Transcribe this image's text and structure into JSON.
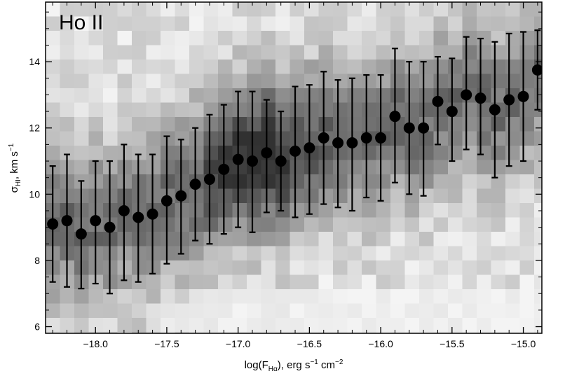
{
  "chart_data": {
    "type": "scatter",
    "title": "Ho II",
    "xlabel": {
      "prefix": "log(F",
      "sub": "Hα",
      "mid": "), erg s",
      "sup1": "−1",
      "mid2": " cm",
      "sup2": "−2"
    },
    "ylabel": {
      "sigma": "σ",
      "sub": "HI",
      "mid": ", km s",
      "sup": "−1"
    },
    "xlim": [
      -18.35,
      -14.87
    ],
    "ylim": [
      5.8,
      15.8
    ],
    "xticks": [
      -18.0,
      -17.5,
      -17.0,
      -16.5,
      -16.0,
      -15.5,
      -15.0
    ],
    "xtick_labels": [
      "−18.0",
      "−17.5",
      "−17.0",
      "−16.5",
      "−16.0",
      "−15.5",
      "−15.0"
    ],
    "yticks": [
      6,
      8,
      10,
      12,
      14
    ],
    "ytick_labels": [
      "6",
      "8",
      "10",
      "12",
      "14"
    ],
    "grid": false,
    "background": "2D density histogram (grayscale)",
    "series": [
      {
        "marker": "filled-circle",
        "color": "#000000",
        "points": [
          {
            "x": -18.3,
            "y": 9.1,
            "ylo": 7.35,
            "yhi": 10.85
          },
          {
            "x": -18.2,
            "y": 9.2,
            "ylo": 7.2,
            "yhi": 11.2
          },
          {
            "x": -18.1,
            "y": 8.8,
            "ylo": 7.15,
            "yhi": 10.4
          },
          {
            "x": -18.0,
            "y": 9.2,
            "ylo": 7.3,
            "yhi": 11.0
          },
          {
            "x": -17.9,
            "y": 9.0,
            "ylo": 7.0,
            "yhi": 11.0
          },
          {
            "x": -17.8,
            "y": 9.5,
            "ylo": 7.4,
            "yhi": 11.5
          },
          {
            "x": -17.7,
            "y": 9.3,
            "ylo": 7.35,
            "yhi": 11.2
          },
          {
            "x": -17.6,
            "y": 9.4,
            "ylo": 7.6,
            "yhi": 11.2
          },
          {
            "x": -17.5,
            "y": 9.8,
            "ylo": 7.9,
            "yhi": 11.75
          },
          {
            "x": -17.4,
            "y": 9.95,
            "ylo": 8.2,
            "yhi": 11.65
          },
          {
            "x": -17.3,
            "y": 10.3,
            "ylo": 8.6,
            "yhi": 12.0
          },
          {
            "x": -17.2,
            "y": 10.45,
            "ylo": 8.5,
            "yhi": 12.4
          },
          {
            "x": -17.1,
            "y": 10.75,
            "ylo": 8.8,
            "yhi": 12.7
          },
          {
            "x": -17.0,
            "y": 11.05,
            "ylo": 9.0,
            "yhi": 13.1
          },
          {
            "x": -16.9,
            "y": 11.0,
            "ylo": 8.85,
            "yhi": 13.1
          },
          {
            "x": -16.8,
            "y": 11.25,
            "ylo": 9.45,
            "yhi": 12.85
          },
          {
            "x": -16.7,
            "y": 11.0,
            "ylo": 9.5,
            "yhi": 12.5
          },
          {
            "x": -16.6,
            "y": 11.3,
            "ylo": 9.3,
            "yhi": 13.25
          },
          {
            "x": -16.5,
            "y": 11.4,
            "ylo": 9.4,
            "yhi": 13.3
          },
          {
            "x": -16.4,
            "y": 11.7,
            "ylo": 9.7,
            "yhi": 13.7
          },
          {
            "x": -16.3,
            "y": 11.55,
            "ylo": 9.6,
            "yhi": 13.45
          },
          {
            "x": -16.2,
            "y": 11.55,
            "ylo": 9.5,
            "yhi": 13.5
          },
          {
            "x": -16.1,
            "y": 11.7,
            "ylo": 9.9,
            "yhi": 13.6
          },
          {
            "x": -16.0,
            "y": 11.7,
            "ylo": 9.8,
            "yhi": 13.6
          },
          {
            "x": -15.9,
            "y": 12.35,
            "ylo": 10.35,
            "yhi": 14.4
          },
          {
            "x": -15.8,
            "y": 12.0,
            "ylo": 10.0,
            "yhi": 14.0
          },
          {
            "x": -15.7,
            "y": 12.0,
            "ylo": 9.95,
            "yhi": 14.0
          },
          {
            "x": -15.6,
            "y": 12.8,
            "ylo": 11.5,
            "yhi": 14.15
          },
          {
            "x": -15.5,
            "y": 12.5,
            "ylo": 11.0,
            "yhi": 14.1
          },
          {
            "x": -15.4,
            "y": 13.0,
            "ylo": 11.35,
            "yhi": 14.75
          },
          {
            "x": -15.3,
            "y": 12.9,
            "ylo": 11.2,
            "yhi": 14.7
          },
          {
            "x": -15.2,
            "y": 12.55,
            "ylo": 10.5,
            "yhi": 14.6
          },
          {
            "x": -15.1,
            "y": 12.85,
            "ylo": 10.85,
            "yhi": 14.85
          },
          {
            "x": -15.0,
            "y": 12.95,
            "ylo": 11.0,
            "yhi": 14.9
          },
          {
            "x": -14.9,
            "y": 13.75,
            "ylo": 12.55,
            "yhi": 14.95
          }
        ]
      }
    ]
  }
}
